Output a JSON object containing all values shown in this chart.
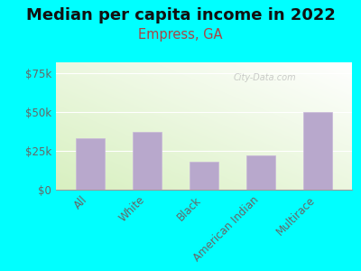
{
  "title": "Median per capita income in 2022",
  "subtitle": "Empress, GA",
  "categories": [
    "All",
    "White",
    "Black",
    "American Indian",
    "Multirace"
  ],
  "values": [
    33000,
    37000,
    18000,
    22000,
    50000
  ],
  "bar_color": "#b8a8cc",
  "bar_edge_color": "#c8b8d8",
  "background_color": "#00ffff",
  "chart_bg_topleft": "#e8f5d8",
  "chart_bg_topright": "#f0faea",
  "chart_bg_bottomleft": "#e0f2cc",
  "chart_bg_bottomright": "#ffffff",
  "title_color": "#111111",
  "subtitle_color": "#aa4444",
  "tick_label_color": "#666666",
  "yticks": [
    0,
    25000,
    50000,
    75000
  ],
  "ytick_labels": [
    "$0",
    "$25k",
    "$50k",
    "$75k"
  ],
  "ylim": [
    0,
    82000
  ],
  "watermark": "City-Data.com",
  "title_fontsize": 13,
  "subtitle_fontsize": 10.5
}
